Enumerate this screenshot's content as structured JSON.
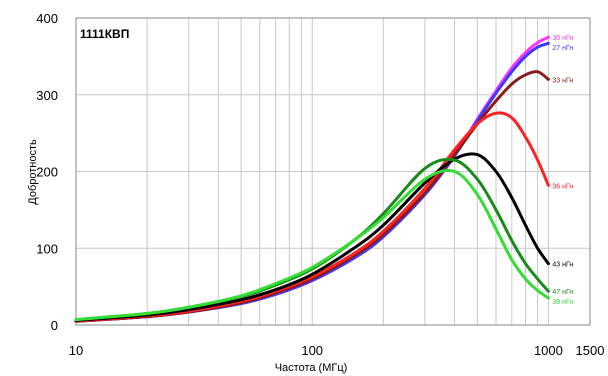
{
  "chart_data": {
    "type": "line",
    "title": "1111КВП",
    "xlabel": "Частота (МГц)",
    "ylabel": "Добротность",
    "x_scale": "log",
    "xlim": [
      10,
      1500
    ],
    "ylim": [
      0,
      400
    ],
    "x_ticks": [
      "10",
      "100",
      "1000",
      "1500"
    ],
    "y_ticks": [
      "0",
      "100",
      "200",
      "300",
      "400"
    ],
    "grid": true,
    "legend": "labels at line ends",
    "series": [
      {
        "name": "30 нГн",
        "color": "#ff33ff",
        "x": [
          10,
          20,
          30,
          50,
          70,
          100,
          150,
          200,
          300,
          400,
          500,
          600,
          700,
          800,
          900,
          1000
        ],
        "y": [
          5,
          11,
          17,
          28,
          40,
          58,
          87,
          115,
          170,
          220,
          268,
          305,
          335,
          355,
          368,
          375
        ]
      },
      {
        "name": "27 нГн",
        "color": "#3b3bff",
        "x": [
          10,
          20,
          30,
          50,
          70,
          100,
          150,
          200,
          300,
          400,
          500,
          600,
          700,
          800,
          900,
          1000
        ],
        "y": [
          5,
          11,
          17,
          28,
          40,
          58,
          87,
          115,
          170,
          220,
          266,
          302,
          330,
          350,
          362,
          367
        ]
      },
      {
        "name": "33 нГн",
        "color": "#8b1a1a",
        "x": [
          10,
          20,
          30,
          50,
          70,
          100,
          150,
          200,
          300,
          400,
          500,
          600,
          700,
          800,
          900,
          1000
        ],
        "y": [
          5,
          11,
          17,
          29,
          42,
          60,
          90,
          118,
          172,
          222,
          262,
          292,
          314,
          326,
          330,
          320
        ]
      },
      {
        "name": "36 нГн",
        "color": "#ff2222",
        "x": [
          10,
          20,
          30,
          50,
          70,
          100,
          150,
          200,
          300,
          400,
          500,
          600,
          700,
          800,
          900,
          1000
        ],
        "y": [
          5,
          12,
          18,
          31,
          44,
          63,
          93,
          122,
          178,
          228,
          262,
          276,
          270,
          245,
          215,
          182
        ]
      },
      {
        "name": "43 нГн",
        "color": "#000000",
        "x": [
          10,
          20,
          30,
          50,
          70,
          100,
          150,
          200,
          300,
          400,
          500,
          600,
          700,
          800,
          900,
          1000
        ],
        "y": [
          6,
          13,
          20,
          33,
          46,
          66,
          100,
          130,
          185,
          216,
          222,
          200,
          166,
          130,
          100,
          80
        ]
      },
      {
        "name": "47 нГн",
        "color": "#1a8a1a",
        "x": [
          10,
          20,
          30,
          50,
          70,
          100,
          150,
          200,
          300,
          400,
          500,
          600,
          700,
          800,
          900,
          1000
        ],
        "y": [
          7,
          15,
          23,
          37,
          52,
          73,
          110,
          145,
          204,
          215,
          190,
          150,
          110,
          80,
          60,
          44
        ]
      },
      {
        "name": "39 нГн",
        "color": "#33dd33",
        "x": [
          10,
          20,
          30,
          50,
          70,
          100,
          150,
          200,
          300,
          400,
          500,
          600,
          700,
          800,
          900,
          1000
        ],
        "y": [
          7,
          15,
          23,
          38,
          54,
          75,
          110,
          140,
          190,
          200,
          170,
          125,
          85,
          60,
          45,
          35
        ]
      }
    ]
  }
}
